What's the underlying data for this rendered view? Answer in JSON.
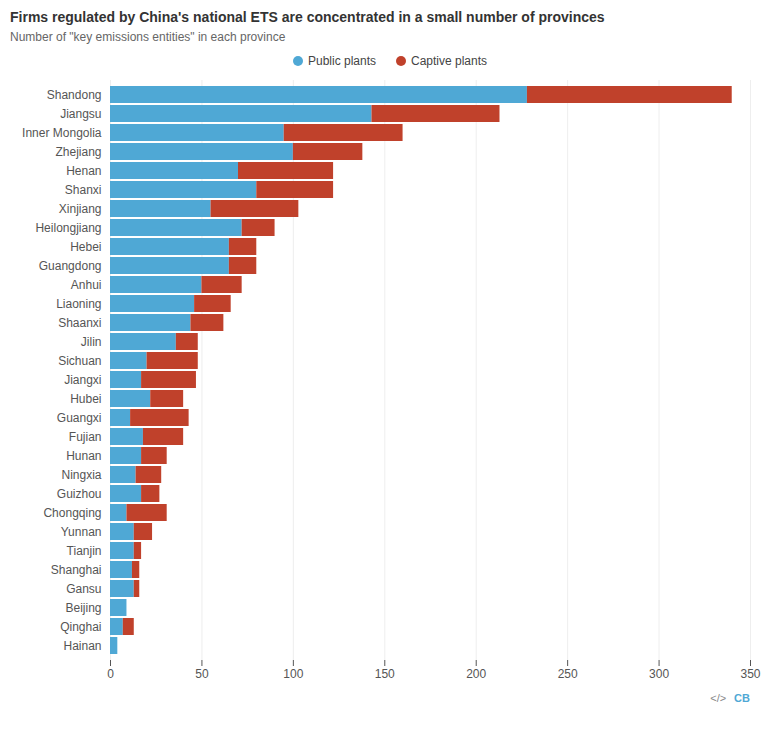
{
  "chart_data": {
    "type": "bar",
    "orientation": "horizontal",
    "stacked": true,
    "title": "Firms regulated by China's national ETS are concentrated in a small number of provinces",
    "subtitle": "Number of \"key emissions entities\" in each province",
    "categories": [
      "Shandong",
      "Jiangsu",
      "Inner Mongolia",
      "Zhejiang",
      "Henan",
      "Shanxi",
      "Xinjiang",
      "Heilongjiang",
      "Hebei",
      "Guangdong",
      "Anhui",
      "Liaoning",
      "Shaanxi",
      "Jilin",
      "Sichuan",
      "Jiangxi",
      "Hubei",
      "Guangxi",
      "Fujian",
      "Hunan",
      "Ningxia",
      "Guizhou",
      "Chongqing",
      "Yunnan",
      "Tianjin",
      "Shanghai",
      "Gansu",
      "Beijing",
      "Qinghai",
      "Hainan"
    ],
    "series": [
      {
        "name": "Public plants",
        "color": "#4FA8D5",
        "values": [
          228,
          143,
          95,
          100,
          70,
          80,
          55,
          72,
          65,
          65,
          50,
          46,
          44,
          36,
          20,
          17,
          22,
          11,
          18,
          17,
          14,
          17,
          9,
          13,
          13,
          12,
          13,
          9,
          7,
          4
        ]
      },
      {
        "name": "Captive plants",
        "color": "#C0412B",
        "values": [
          112,
          70,
          65,
          38,
          52,
          42,
          48,
          18,
          15,
          15,
          22,
          20,
          18,
          12,
          28,
          30,
          18,
          32,
          22,
          14,
          14,
          10,
          22,
          10,
          4,
          4,
          3,
          0,
          6,
          0
        ]
      }
    ],
    "xlim": [
      0,
      350
    ],
    "xticks": [
      0,
      50,
      100,
      150,
      200,
      250,
      300,
      350
    ],
    "grid": true,
    "legend": "top",
    "annotations": [
      "</>",
      "CB"
    ]
  }
}
